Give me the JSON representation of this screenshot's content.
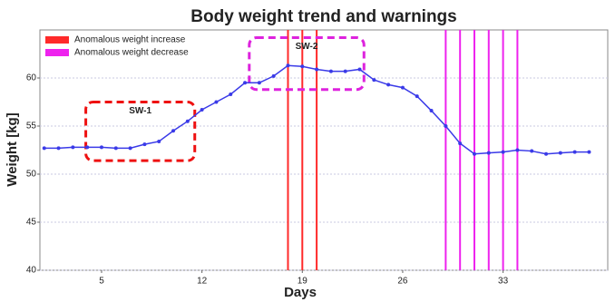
{
  "chart_data": {
    "type": "line",
    "title": "Body weight trend and warnings",
    "xlabel": "Days",
    "ylabel": "Weight [kg]",
    "x": [
      1,
      2,
      3,
      4,
      5,
      6,
      7,
      8,
      9,
      10,
      11,
      12,
      13,
      14,
      15,
      16,
      17,
      18,
      19,
      20,
      21,
      22,
      23,
      24,
      25,
      26,
      27,
      28,
      29,
      30,
      31,
      32,
      33,
      34,
      35,
      36,
      37,
      38,
      39
    ],
    "series": [
      {
        "color": "#3a3ae8",
        "values": [
          52.7,
          52.7,
          52.8,
          52.8,
          52.8,
          52.7,
          52.7,
          53.1,
          53.4,
          54.5,
          55.5,
          56.7,
          57.5,
          58.3,
          59.5,
          59.5,
          60.2,
          61.3,
          61.2,
          60.9,
          60.7,
          60.7,
          60.9,
          59.8,
          59.3,
          59.0,
          58.1,
          56.6,
          55.0,
          53.2,
          52.1,
          52.2,
          52.3,
          52.5,
          52.4,
          52.1,
          52.2,
          52.3,
          52.3
        ]
      }
    ],
    "warnings": [
      {
        "name": "Anomalous weight increase",
        "color": "#ff2a2a",
        "days": [
          18,
          19,
          20
        ]
      },
      {
        "name": "Anomalous weight decrease",
        "color": "#ee22ee",
        "days": [
          29,
          30,
          31,
          32,
          33,
          34
        ]
      }
    ],
    "annotations": [
      {
        "text": "SW-1",
        "color": "#ee1111"
      },
      {
        "text": "SW-2",
        "color": "#dd22dd"
      }
    ],
    "xlim": [
      0.7,
      40.3
    ],
    "xticks": [
      5,
      12,
      19,
      26,
      33
    ],
    "ylim": [
      40,
      65
    ],
    "yticks": [
      40,
      45,
      50,
      55,
      60
    ],
    "grid": true,
    "legend": "upper-left"
  }
}
